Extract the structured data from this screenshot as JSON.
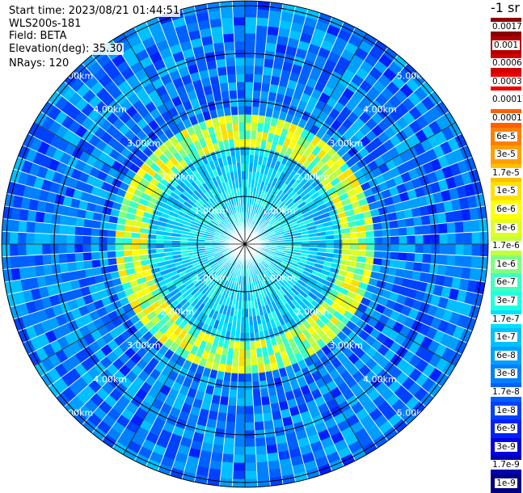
{
  "header": {
    "start_time": "Start time: 2023/08/21 01:44:51",
    "instrument": "WLS200s-181",
    "field": "Field: BETA",
    "elevation": "Elevation(deg): 35.30",
    "nrays": "NRays: 120"
  },
  "colorbar": {
    "title": "-1 sr",
    "labels": [
      "0.0017",
      "0.001",
      "0.0006",
      "0.0003",
      "0.00017",
      "0.0001",
      "6e-5",
      "3e-5",
      "1.7e-5",
      "1e-5",
      "6e-6",
      "3e-6",
      "1.7e-6",
      "1e-6",
      "6e-7",
      "3e-7",
      "1.7e-7",
      "1e-7",
      "6e-8",
      "3e-8",
      "1.7e-8",
      "1e-8",
      "6e-9",
      "3e-9",
      "1.7e-9",
      "1e-9"
    ],
    "colors": [
      "#8b0000",
      "#b00000",
      "#d40000",
      "#f00000",
      "#ffffff",
      "#ff6000",
      "#ff8000",
      "#ffa000",
      "#ffc000",
      "#ffe000",
      "#ffff00",
      "#e0ff20",
      "#c0ff40",
      "#80ff80",
      "#40ffc0",
      "#20ffe0",
      "#00e0ff",
      "#00c0ff",
      "#00a0ff",
      "#0080ff",
      "#0060ff",
      "#0040ff",
      "#0020ff",
      "#0000e0",
      "#0000b0",
      "#000080"
    ]
  },
  "chart_data": {
    "type": "polar-ppi",
    "field": "BETA",
    "n_rays": 120,
    "range_ring_labels": [
      "1.00km",
      "2.00km",
      "3.00km",
      "4.00km",
      "5.00km"
    ],
    "range_rings_km": [
      1,
      2,
      3,
      4,
      5
    ],
    "max_range_km": 5.1,
    "spokes_deg": [
      0,
      30,
      60,
      90,
      120,
      150,
      180,
      210,
      240,
      270,
      300,
      330
    ],
    "color_scale": "log",
    "value_range": [
      1e-09,
      0.0017
    ],
    "enhanced_layer": {
      "range_km": [
        2.0,
        2.7
      ],
      "approx_value": 1e-05
    },
    "background_value_range": [
      1e-08,
      3e-07
    ]
  }
}
